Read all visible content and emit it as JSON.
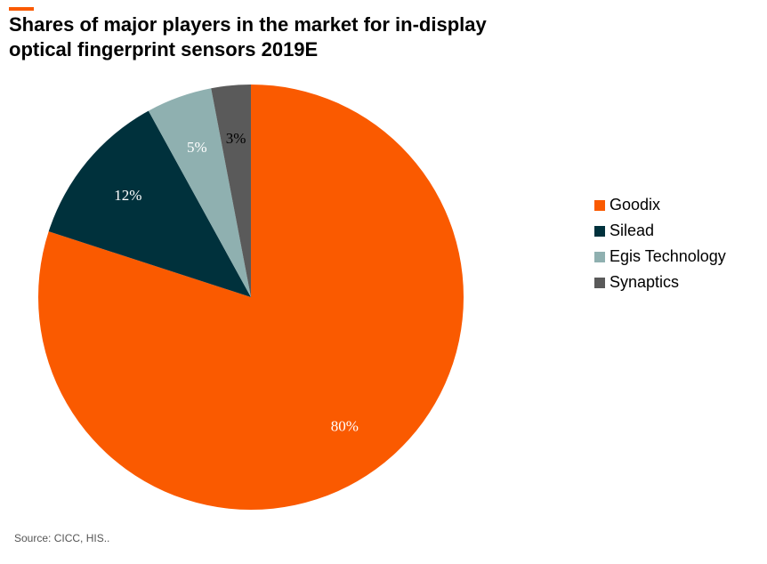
{
  "header": {
    "title_line1": "Shares of major players in the market for in-display",
    "title_line2": "optical fingerprint sensors 2019E"
  },
  "chart_data": {
    "type": "pie",
    "title": "Shares of major players in the market for in-display optical fingerprint sensors 2019E",
    "categories": [
      "Goodix",
      "Silead",
      "Egis Technology",
      "Synaptics"
    ],
    "values": [
      80,
      12,
      5,
      3
    ],
    "labels": [
      "80%",
      "12%",
      "5%",
      "3%"
    ],
    "colors": [
      "#fa5a00",
      "#00313c",
      "#8fb0b0",
      "#5a5a5a"
    ],
    "start": "top, clockwise",
    "legend_position": "right"
  },
  "footer": {
    "source": "Source:  CICC, HIS.."
  }
}
